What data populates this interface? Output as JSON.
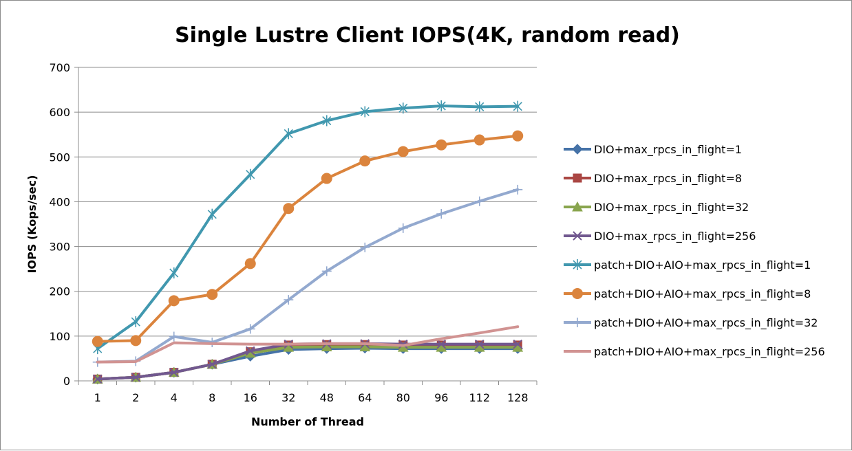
{
  "chart_data": {
    "type": "line",
    "title": "Single Lustre Client IOPS(4K, random read)",
    "xlabel": "Number of Thread",
    "ylabel": "IOPS (Kops/sec)",
    "categories": [
      "1",
      "2",
      "4",
      "8",
      "16",
      "32",
      "48",
      "64",
      "80",
      "96",
      "112",
      "128"
    ],
    "ylim": [
      0,
      700
    ],
    "yticks": [
      0,
      100,
      200,
      300,
      400,
      500,
      600,
      700
    ],
    "grid": "horizontal",
    "legend": "right",
    "series": [
      {
        "name": "DIO+max_rpcs_in_flight=1",
        "color": "#4572A7",
        "marker": "diamond",
        "values": [
          4,
          8,
          19,
          37,
          55,
          70,
          72,
          73,
          72,
          72,
          72,
          72
        ]
      },
      {
        "name": "DIO+max_rpcs_in_flight=8",
        "color": "#AA4643",
        "marker": "square",
        "values": [
          4,
          8,
          19,
          37,
          65,
          80,
          81,
          81,
          80,
          80,
          80,
          80
        ]
      },
      {
        "name": "DIO+max_rpcs_in_flight=32",
        "color": "#89A54E",
        "marker": "triangle",
        "values": [
          4,
          8,
          19,
          37,
          62,
          75,
          76,
          76,
          75,
          75,
          75,
          75
        ]
      },
      {
        "name": "DIO+max_rpcs_in_flight=256",
        "color": "#71588F",
        "marker": "x",
        "values": [
          4,
          8,
          19,
          37,
          67,
          82,
          83,
          83,
          82,
          82,
          82,
          82
        ]
      },
      {
        "name": "patch+DIO+AIO+max_rpcs_in_flight=1",
        "color": "#4198AF",
        "marker": "star",
        "values": [
          72,
          132,
          241,
          372,
          461,
          552,
          581,
          601,
          609,
          614,
          612,
          613
        ]
      },
      {
        "name": "patch+DIO+AIO+max_rpcs_in_flight=8",
        "color": "#DB843D",
        "marker": "circle",
        "values": [
          88,
          90,
          179,
          193,
          262,
          385,
          452,
          491,
          512,
          527,
          538,
          547
        ]
      },
      {
        "name": "patch+DIO+AIO+max_rpcs_in_flight=32",
        "color": "#93A9CF",
        "marker": "plus",
        "values": [
          42,
          44,
          99,
          86,
          116,
          181,
          245,
          298,
          341,
          373,
          401,
          427
        ]
      },
      {
        "name": "patch+DIO+AIO+max_rpcs_in_flight=256",
        "color": "#D19392",
        "marker": "none",
        "values": [
          42,
          43,
          85,
          83,
          82,
          82,
          83,
          83,
          79,
          94,
          107,
          121
        ]
      }
    ]
  }
}
